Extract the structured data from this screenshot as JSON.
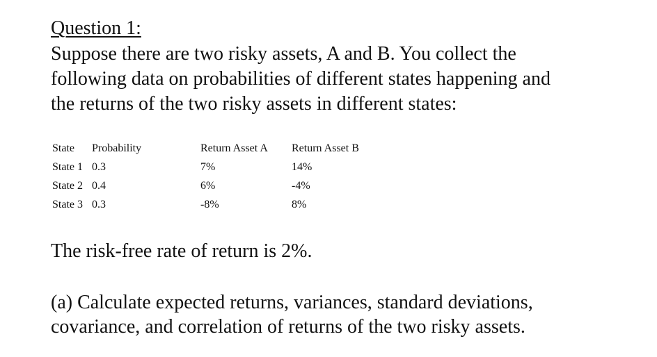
{
  "question": {
    "title": "Question 1:",
    "intro_lines": [
      "Suppose there are two risky assets, A and B. You collect the",
      "following data on probabilities of different states happening and",
      "the returns of the two risky assets in different states:"
    ]
  },
  "table": {
    "headers": [
      "State",
      "Probability",
      "Return Asset A",
      "Return Asset B"
    ],
    "rows": [
      {
        "state": "State 1",
        "probability": "0.3",
        "return_a": "7%",
        "return_b": "14%"
      },
      {
        "state": "State 2",
        "probability": "0.4",
        "return_a": "6%",
        "return_b": "-4%"
      },
      {
        "state": "State 3",
        "probability": "0.3",
        "return_a": "-8%",
        "return_b": "8%"
      }
    ]
  },
  "risk_free": "The risk-free rate of return is 2%.",
  "part_a": {
    "lines": [
      "(a) Calculate expected returns, variances, standard deviations,",
      "covariance, and correlation of returns of the two risky assets."
    ]
  }
}
